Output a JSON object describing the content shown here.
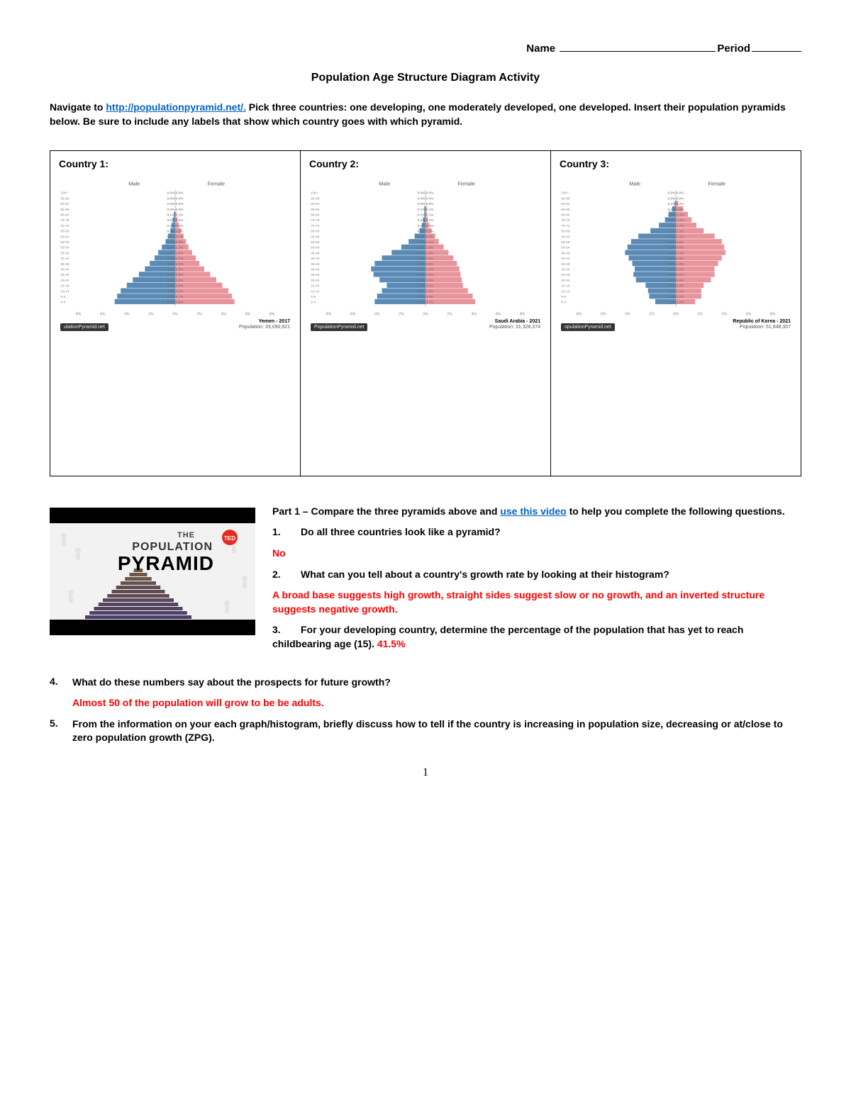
{
  "header": {
    "name_label": "Name",
    "period_label": "Period"
  },
  "title": "Population Age Structure Diagram Activity",
  "intro_pre": "Navigate to ",
  "intro_link": "http://populationpyramid.net/.",
  "intro_post": " Pick three countries: one developing, one moderately developed, one developed. Insert their population pyramids below.  Be sure to include any labels that show which country goes with which pyramid.",
  "countries": [
    {
      "label": "Country 1:",
      "male_label": "Male",
      "female_label": "Female",
      "badge": "ulationPyramid.net",
      "name": "Yemen - 2017",
      "pop": "Population: 33,090,921",
      "male_color": "#5b8bb5",
      "female_color": "#e8949c",
      "age_labels": [
        "100+",
        "95-99",
        "90-94",
        "85-89",
        "80-84",
        "75-79",
        "70-74",
        "65-69",
        "60-64",
        "55-59",
        "50-54",
        "45-49",
        "40-44",
        "35-39",
        "30-34",
        "25-29",
        "20-24",
        "15-19",
        "10-14",
        "5-9",
        "0-4"
      ],
      "male": [
        0.0,
        0.0,
        0.0,
        0.0,
        0.1,
        0.2,
        0.3,
        0.4,
        0.6,
        0.8,
        1.1,
        1.4,
        1.7,
        2.1,
        2.5,
        3.0,
        3.5,
        4.0,
        4.5,
        4.8,
        5.0
      ],
      "female": [
        0.0,
        0.0,
        0.0,
        0.0,
        0.1,
        0.2,
        0.3,
        0.5,
        0.7,
        0.9,
        1.1,
        1.4,
        1.7,
        2.0,
        2.4,
        2.9,
        3.4,
        3.9,
        4.4,
        4.7,
        4.9
      ],
      "pct_labels": [
        "0.0% 0.0%",
        "0.0% 0.0%",
        "0.0% 0.0%",
        "0.0% 0.0%",
        "0.1% 0.1%",
        "0.2% 0.2%",
        "0.3% 0.3%",
        "0.4% 0.5%",
        "0.6% 0.7%",
        "0.8% 0.9%",
        "1.1% 1.1%",
        "1.4% 1.4%",
        "1.7% 1.7%",
        "2.1% 2.0%",
        "2.5% 2.4%",
        "3.0% 2.9%",
        "3.5% 3.4%",
        "4.0% 3.9%",
        "4.5% 4.4%",
        "4.8% 4.7%",
        "5.0% 4.9%"
      ],
      "xmax": 8,
      "xticks": [
        "8%",
        "6%",
        "4%",
        "2%",
        "0%",
        "2%",
        "4%",
        "6%",
        "8%"
      ]
    },
    {
      "label": "Country 2:",
      "male_label": "Male",
      "female_label": "Female",
      "badge": "PopulationPyramid.net",
      "name": "Saudi Arabia - 2021",
      "pop": "Population: 31,328,374",
      "male_color": "#5b8bb5",
      "female_color": "#e8949c",
      "age_labels": [
        "100+",
        "95-99",
        "90-94",
        "85-89",
        "80-84",
        "75-79",
        "70-74",
        "65-69",
        "60-64",
        "55-59",
        "50-54",
        "45-49",
        "40-44",
        "35-39",
        "30-34",
        "25-29",
        "20-24",
        "15-19",
        "10-14",
        "5-9",
        "0-4"
      ],
      "male": [
        0.0,
        0.0,
        0.0,
        0.1,
        0.1,
        0.2,
        0.3,
        0.5,
        0.9,
        1.4,
        2.0,
        2.8,
        3.6,
        4.2,
        4.5,
        4.3,
        3.8,
        3.2,
        3.6,
        4.0,
        4.2
      ],
      "female": [
        0.0,
        0.0,
        0.0,
        0.1,
        0.1,
        0.2,
        0.3,
        0.5,
        0.8,
        1.1,
        1.5,
        1.9,
        2.3,
        2.6,
        2.8,
        2.9,
        3.0,
        3.1,
        3.5,
        3.9,
        4.1
      ],
      "pct_labels": [
        "0.0% 0.0%",
        "0.0% 0.0%",
        "0.0% 0.0%",
        "0.1% 0.1%",
        "0.1% 0.1%",
        "0.2% 0.2%",
        "0.3% 0.3%",
        "0.5% 0.5%",
        "0.9% 0.8%",
        "1.4% 1.1%",
        "2.0% 1.5%",
        "2.8% 1.9%",
        "3.6% 2.3%",
        "4.2% 2.6%",
        "4.5% 2.8%",
        "4.3% 2.9%",
        "3.8% 3.0%",
        "3.2% 3.1%",
        "3.6% 3.5%",
        "4.0% 3.9%",
        "4.2% 4.1%"
      ],
      "xmax": 8,
      "xticks": [
        "8%",
        "6%",
        "4%",
        "2%",
        "0%",
        "2%",
        "4%",
        "6%",
        "8%"
      ]
    },
    {
      "label": "Country 3:",
      "male_label": "Male",
      "female_label": "Female",
      "badge": "opulationPyramid.net",
      "name": "Republic of Korea - 2021",
      "pop": "Population: 51,848,307",
      "male_color": "#5b8bb5",
      "female_color": "#e8949c",
      "age_labels": [
        "100+",
        "95-99",
        "90-94",
        "85-89",
        "80-84",
        "75-79",
        "70-74",
        "65-69",
        "60-64",
        "55-59",
        "50-54",
        "45-49",
        "40-44",
        "35-39",
        "30-34",
        "25-29",
        "20-24",
        "15-19",
        "10-14",
        "5-9",
        "0-4"
      ],
      "male": [
        0.0,
        0.0,
        0.1,
        0.3,
        0.6,
        0.9,
        1.4,
        2.1,
        3.1,
        3.7,
        4.0,
        4.2,
        3.9,
        3.6,
        3.4,
        3.5,
        3.3,
        2.5,
        2.3,
        2.2,
        1.7
      ],
      "female": [
        0.0,
        0.0,
        0.2,
        0.6,
        1.0,
        1.3,
        1.7,
        2.3,
        3.2,
        3.8,
        4.0,
        4.1,
        3.8,
        3.5,
        3.2,
        3.2,
        2.9,
        2.3,
        2.1,
        2.1,
        1.6
      ],
      "pct_labels": [
        "0.0% 0.0%",
        "0.0% 0.0%",
        "0.1% 0.2%",
        "0.3% 0.6%",
        "0.6% 1.0%",
        "0.9% 1.3%",
        "1.4% 1.7%",
        "2.1% 2.3%",
        "3.1% 3.2%",
        "3.7% 3.8%",
        "4.0% 4.0%",
        "4.2% 4.1%",
        "3.9% 3.8%",
        "3.6% 3.5%",
        "3.4% 3.2%",
        "3.5% 3.2%",
        "3.3% 2.9%",
        "2.5% 2.3%",
        "2.3% 2.1%",
        "2.2% 2.1%",
        "1.7% 1.6%"
      ],
      "xmax": 8,
      "xticks": [
        "8%",
        "6%",
        "4%",
        "2%",
        "0%",
        "2%",
        "4%",
        "6%",
        "8%"
      ]
    }
  ],
  "part1_intro_pre": "Part 1 – Compare the three pyramids above and ",
  "part1_link": "use this video",
  "part1_intro_post": " to help you complete the following questions.",
  "q1_num": "1.",
  "q1": "Do all three countries look like a pyramid?",
  "a1": "No",
  "q2_num": "2.",
  "q2": "What can you tell about a country's growth rate by looking at their histogram?",
  "a2": "A broad base suggests high growth, straight sides suggest slow or no growth, and an inverted structure suggests negative growth.",
  "q3_num": "3.",
  "q3": "For your developing country, determine the percentage of the population that has yet to reach childbearing age (15). ",
  "a3": "41.5%",
  "q4_num": "4.",
  "q4": "What do these numbers say about the prospects for future growth?",
  "a4": "Almost 50 of the population will grow to be be adults.",
  "q5_num": "5.",
  "q5": "From the information on your each graph/histogram, briefly discuss how to tell if the country is increasing in population size, decreasing or at/close to zero population growth (ZPG).",
  "video_thumb": {
    "the": "THE",
    "population": "POPULATION",
    "pyramid": "PYRAMID",
    "ted": "TED"
  },
  "page_number": "1"
}
